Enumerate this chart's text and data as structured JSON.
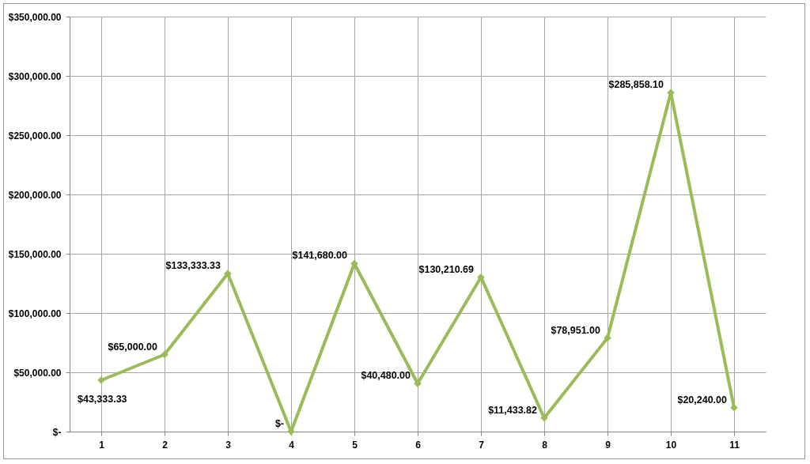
{
  "chart_data": {
    "type": "line",
    "categories": [
      "1",
      "2",
      "3",
      "4",
      "5",
      "6",
      "7",
      "8",
      "9",
      "10",
      "11"
    ],
    "series": [
      {
        "color": "#9bbb59",
        "values": [
          43333.33,
          65000,
          133333.33,
          0,
          141680,
          40480,
          130210.69,
          11433.82,
          78951,
          285858.1,
          20240
        ],
        "value_labels": [
          "$43,333.33",
          "$65,000.00",
          "$133,333.33",
          "$-",
          "$141,680.00",
          "$40,480.00",
          "$130,210.69",
          "$11,433.82",
          "$78,951.00",
          "$285,858.10",
          "$20,240.00"
        ]
      }
    ],
    "ylim": [
      0,
      350000
    ],
    "yticks": [
      {
        "value": 0,
        "label": "$-"
      },
      {
        "value": 50000,
        "label": "$50,000.00"
      },
      {
        "value": 100000,
        "label": "$100,000.00"
      },
      {
        "value": 150000,
        "label": "$150,000.00"
      },
      {
        "value": 200000,
        "label": "$200,000.00"
      },
      {
        "value": 250000,
        "label": "$250,000.00"
      },
      {
        "value": 300000,
        "label": "$300,000.00"
      },
      {
        "value": 350000,
        "label": "$350,000.00"
      }
    ],
    "grid": true,
    "marker": "diamond",
    "line_style": "solid",
    "legend": false
  }
}
